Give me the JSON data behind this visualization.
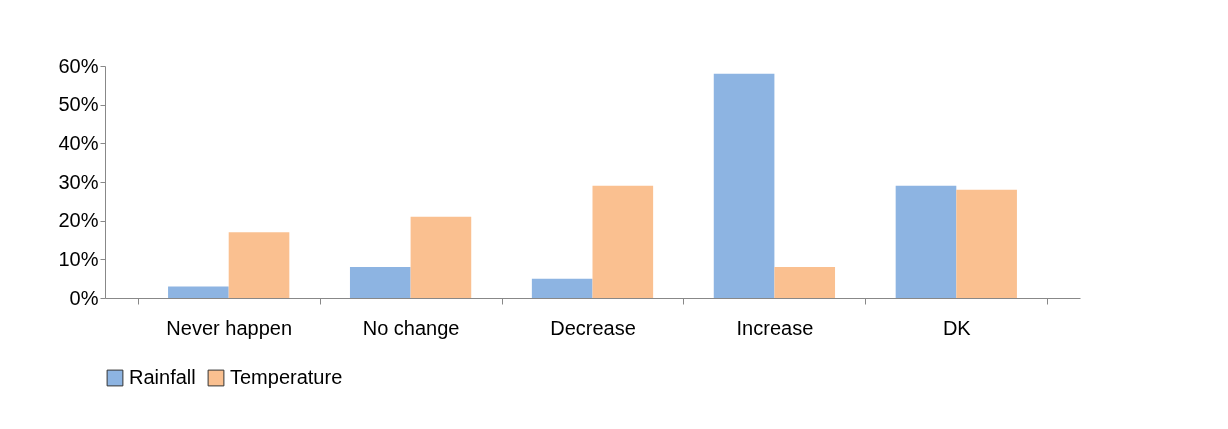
{
  "chart_data": {
    "type": "bar",
    "categories": [
      "Never happen",
      "No change",
      "Decrease",
      "Increase",
      "DK"
    ],
    "series": [
      {
        "name": "Rainfall",
        "color": "#8db4e2",
        "values": [
          3,
          8,
          5,
          58,
          29
        ]
      },
      {
        "name": "Temperature",
        "color": "#fac090",
        "values": [
          17,
          21,
          29,
          8,
          28
        ]
      }
    ],
    "ylim": [
      0,
      60
    ],
    "yticks": [
      {
        "value": 0,
        "label": "0%"
      },
      {
        "value": 10,
        "label": "10%"
      },
      {
        "value": 20,
        "label": "20%"
      },
      {
        "value": 30,
        "label": "30%"
      },
      {
        "value": 40,
        "label": "40%"
      },
      {
        "value": 50,
        "label": "50%"
      },
      {
        "value": 60,
        "label": "60%"
      }
    ],
    "grid": false,
    "legend": "bottom"
  }
}
